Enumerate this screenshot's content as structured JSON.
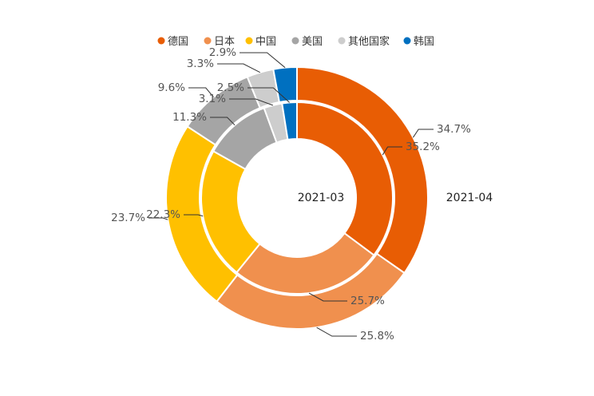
{
  "chart_data": {
    "type": "pie",
    "subtype": "nested-donut",
    "legend": {
      "placement": "top",
      "items": [
        {
          "name": "德国",
          "color": "#E85D04"
        },
        {
          "name": "日本",
          "color": "#F0904E"
        },
        {
          "name": "中国",
          "color": "#FFC000"
        },
        {
          "name": "美国",
          "color": "#A5A5A5"
        },
        {
          "name": "其他国家",
          "color": "#CDCDCD"
        },
        {
          "name": "韩国",
          "color": "#0070C0"
        }
      ]
    },
    "categories": [
      "德国",
      "日本",
      "中国",
      "美国",
      "其他国家",
      "韩国"
    ],
    "series": [
      {
        "name": "2021-03",
        "ring": "inner",
        "values": [
          35.2,
          25.7,
          22.3,
          11.3,
          3.1,
          2.5
        ],
        "labels": [
          "35.2%",
          "25.7%",
          "22.3%",
          "11.3%",
          "3.1%",
          "2.5%"
        ]
      },
      {
        "name": "2021-04",
        "ring": "outer",
        "values": [
          34.7,
          25.8,
          23.7,
          9.6,
          3.3,
          2.9
        ],
        "labels": [
          "34.7%",
          "25.8%",
          "23.7%",
          "9.6%",
          "3.3%",
          "2.9%"
        ]
      }
    ]
  }
}
